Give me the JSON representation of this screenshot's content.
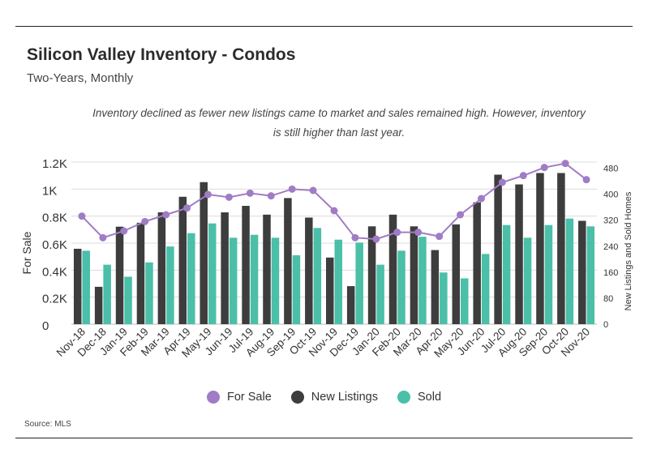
{
  "title": "Silicon Valley Inventory - Condos",
  "subtitle": "Two-Years, Monthly",
  "annotation": "Inventory declined as fewer new listings came to market and sales remained high. However, inventory is still higher than last year.",
  "source": "Source:  MLS",
  "colors": {
    "for_sale": "#a07cc5",
    "new_listings": "#3d3d3d",
    "sold": "#4bbfa8",
    "grid": "#dcdcdc"
  },
  "chart_data": {
    "type": "bar",
    "categories": [
      "Nov-18",
      "Dec-18",
      "Jan-19",
      "Feb-19",
      "Mar-19",
      "Apr-19",
      "May-19",
      "Jun-19",
      "Jul-19",
      "Aug-19",
      "Sep-19",
      "Oct-19",
      "Nov-19",
      "Dec-19",
      "Jan-20",
      "Feb-20",
      "Mar-20",
      "Apr-20",
      "May-20",
      "Jun-20",
      "Jul-20",
      "Aug-20",
      "Sep-20",
      "Oct-20",
      "Nov-20"
    ],
    "series": [
      {
        "name": "For Sale",
        "kind": "line",
        "axis": "left",
        "values": [
          800,
          640,
          690,
          760,
          810,
          860,
          960,
          940,
          970,
          950,
          1000,
          990,
          840,
          640,
          630,
          680,
          680,
          650,
          810,
          930,
          1050,
          1100,
          1160,
          1190,
          1070
        ]
      },
      {
        "name": "New Listings",
        "kind": "bar",
        "axis": "right",
        "values": [
          232,
          115,
          300,
          312,
          344,
          392,
          437,
          344,
          364,
          337,
          388,
          328,
          205,
          117,
          301,
          337,
          301,
          228,
          307,
          375,
          460,
          430,
          465,
          465,
          318
        ]
      },
      {
        "name": "Sold",
        "kind": "bar",
        "axis": "right",
        "values": [
          226,
          183,
          146,
          190,
          239,
          280,
          310,
          266,
          275,
          266,
          212,
          296,
          260,
          251,
          183,
          226,
          269,
          159,
          141,
          216,
          305,
          266,
          305,
          325,
          301
        ]
      }
    ],
    "left_axis": {
      "label": "For Sale",
      "ticks": [
        "0",
        "0.2K",
        "0.4K",
        "0.6K",
        "0.8K",
        "1K",
        "1.2K"
      ],
      "tick_values": [
        0,
        200,
        400,
        600,
        800,
        1000,
        1200
      ],
      "range": [
        0,
        1250
      ]
    },
    "right_axis": {
      "label": "New Listings and Sold Homes",
      "ticks": [
        "0",
        "80",
        "160",
        "240",
        "320",
        "400",
        "480"
      ],
      "tick_values": [
        0,
        80,
        160,
        240,
        320,
        400,
        480
      ],
      "range": [
        0,
        500
      ]
    },
    "grid": true,
    "legend": "bottom"
  }
}
